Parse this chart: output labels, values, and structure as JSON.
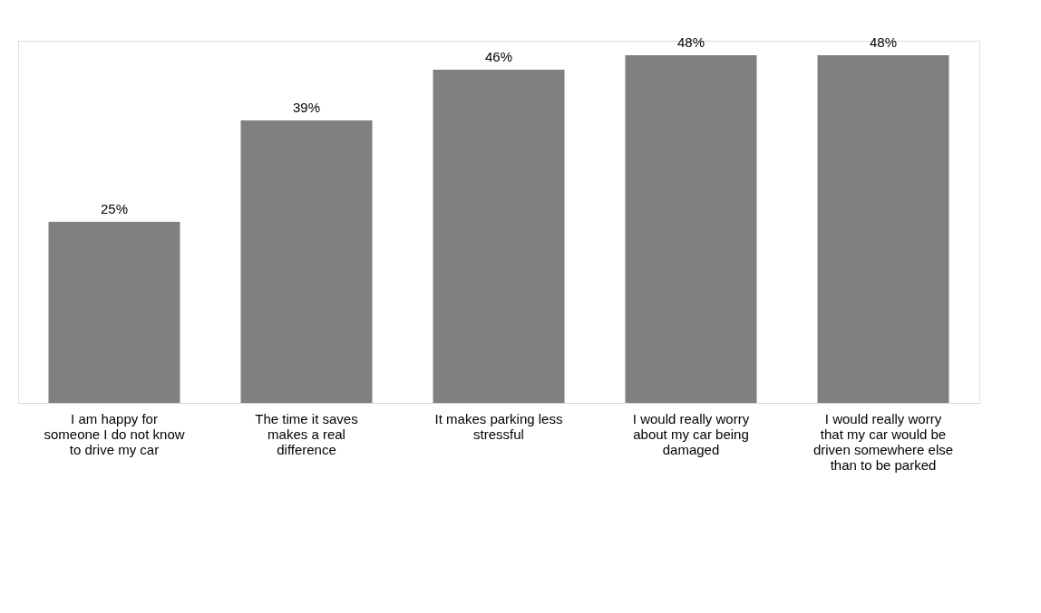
{
  "chart_data": {
    "type": "bar",
    "categories": [
      "I am happy for someone I do not know to drive my car",
      "The time it saves makes a real difference",
      "It makes parking less stressful",
      "I would really worry about my car being damaged",
      "I would really worry that my car would be driven somewhere else than to be parked"
    ],
    "values": [
      25,
      39,
      46,
      48,
      48
    ],
    "value_labels": [
      "25%",
      "39%",
      "46%",
      "48%",
      "48%"
    ],
    "color": "#808080",
    "grid": false
  }
}
